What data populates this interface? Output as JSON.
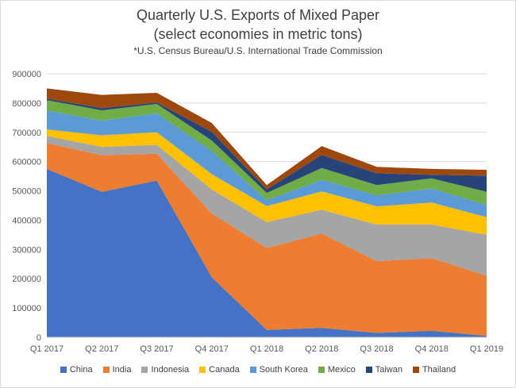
{
  "chart_data": {
    "type": "area",
    "stacked": true,
    "title": "Quarterly U.S. Exports of Mixed Paper",
    "subtitle": "(select economies in metric tons)",
    "source": "*U.S. Census Bureau/U.S. International Trade Commission",
    "categories": [
      "Q1 2017",
      "Q2 2017",
      "Q3 2017",
      "Q4 2017",
      "Q1 2018",
      "Q2 2018",
      "Q3 2018",
      "Q4 2018",
      "Q1 2019"
    ],
    "ylim": [
      0,
      900000
    ],
    "yticks": [
      "0",
      "100000",
      "200000",
      "300000",
      "400000",
      "500000",
      "600000",
      "700000",
      "800000",
      "900000"
    ],
    "grid": true,
    "legend_position": "bottom",
    "series": [
      {
        "name": "China",
        "color": "#4472C4",
        "values": [
          575000,
          497000,
          535000,
          205000,
          25000,
          32000,
          15000,
          22000,
          5000
        ]
      },
      {
        "name": "India",
        "color": "#ED7D31",
        "values": [
          88000,
          125000,
          92000,
          218000,
          280000,
          322000,
          245000,
          248000,
          205000
        ]
      },
      {
        "name": "Indonesia",
        "color": "#A5A5A5",
        "values": [
          25000,
          28000,
          30000,
          82000,
          88000,
          82000,
          125000,
          115000,
          140000
        ]
      },
      {
        "name": "Canada",
        "color": "#FFC000",
        "values": [
          22000,
          40000,
          43000,
          52000,
          55000,
          62000,
          62000,
          75000,
          60000
        ]
      },
      {
        "name": "South Korea",
        "color": "#5B9BD5",
        "values": [
          65000,
          50000,
          65000,
          80000,
          20000,
          40000,
          38000,
          48000,
          42000
        ]
      },
      {
        "name": "Mexico",
        "color": "#70AD47",
        "values": [
          35000,
          35000,
          32000,
          35000,
          25000,
          40000,
          35000,
          35000,
          45000
        ]
      },
      {
        "name": "Taiwan",
        "color": "#264478",
        "values": [
          5000,
          8000,
          5000,
          30000,
          12000,
          45000,
          40000,
          12000,
          55000
        ]
      },
      {
        "name": "Thailand",
        "color": "#9E480E",
        "values": [
          35000,
          45000,
          33000,
          30000,
          15000,
          30000,
          22000,
          20000,
          20000
        ]
      }
    ]
  }
}
